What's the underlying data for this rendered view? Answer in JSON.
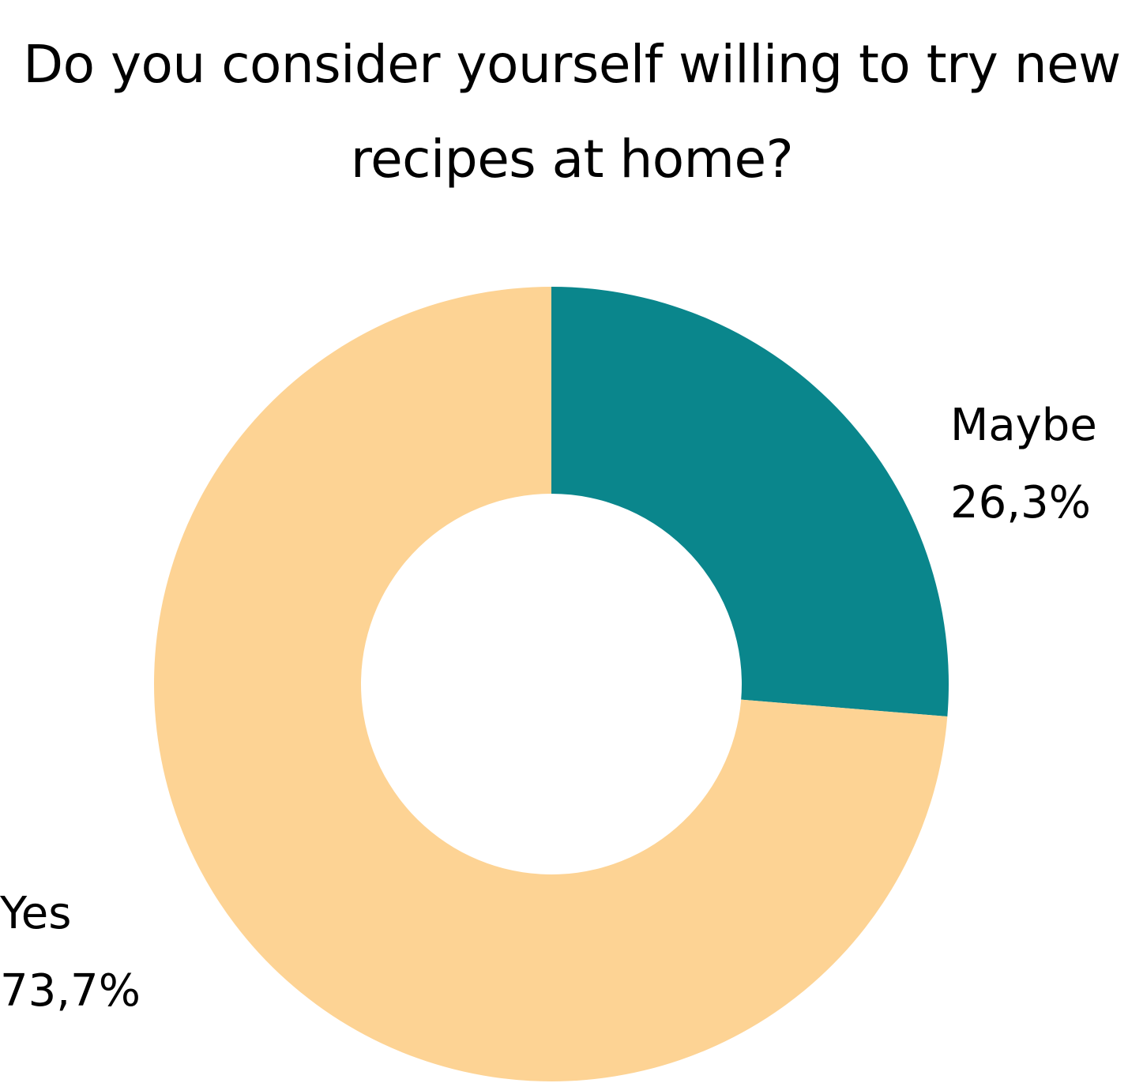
{
  "chart_data": {
    "type": "pie",
    "donut": true,
    "title": "Do you consider yourself willing to try new recipes at home?",
    "categories": [
      "Maybe",
      "Yes"
    ],
    "values": [
      26.3,
      73.7
    ],
    "value_labels": [
      "26,3%",
      "73,7%"
    ],
    "colors": [
      "#0a868c",
      "#fdd394"
    ],
    "start": "12 o'clock",
    "direction": "clockwise",
    "legend": "none"
  }
}
